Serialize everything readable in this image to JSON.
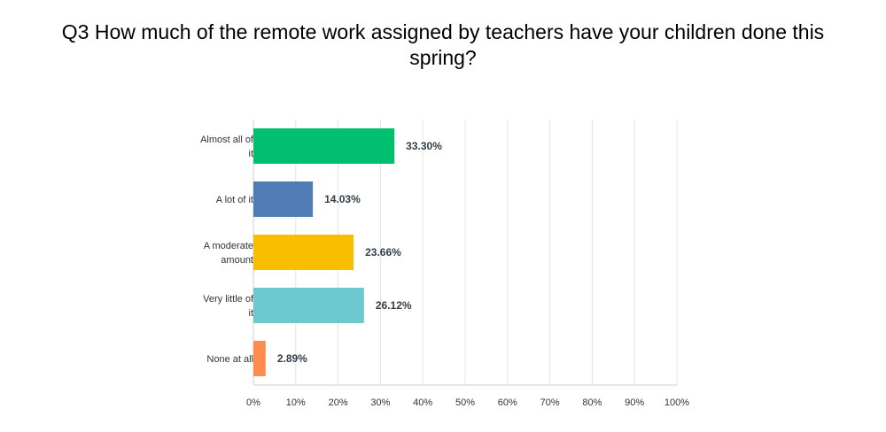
{
  "chart_data": {
    "type": "bar",
    "orientation": "horizontal",
    "title": "Q3 How much of the remote work assigned by teachers have your children done this spring?",
    "categories": [
      [
        "Almost all of",
        "it"
      ],
      [
        "A lot of it"
      ],
      [
        "A moderate",
        "amount"
      ],
      [
        "Very little of",
        "it"
      ],
      [
        "None at all"
      ]
    ],
    "values": [
      33.3,
      14.03,
      23.66,
      26.12,
      2.89
    ],
    "value_labels": [
      "33.30%",
      "14.03%",
      "23.66%",
      "26.12%",
      "2.89%"
    ],
    "colors": [
      "#00bf6f",
      "#507cb6",
      "#f9be00",
      "#6bc8cd",
      "#ff8b4f"
    ],
    "xlim": [
      0,
      100
    ],
    "xticks": [
      "0%",
      "10%",
      "20%",
      "30%",
      "40%",
      "50%",
      "60%",
      "70%",
      "80%",
      "90%",
      "100%"
    ],
    "grid": true
  }
}
